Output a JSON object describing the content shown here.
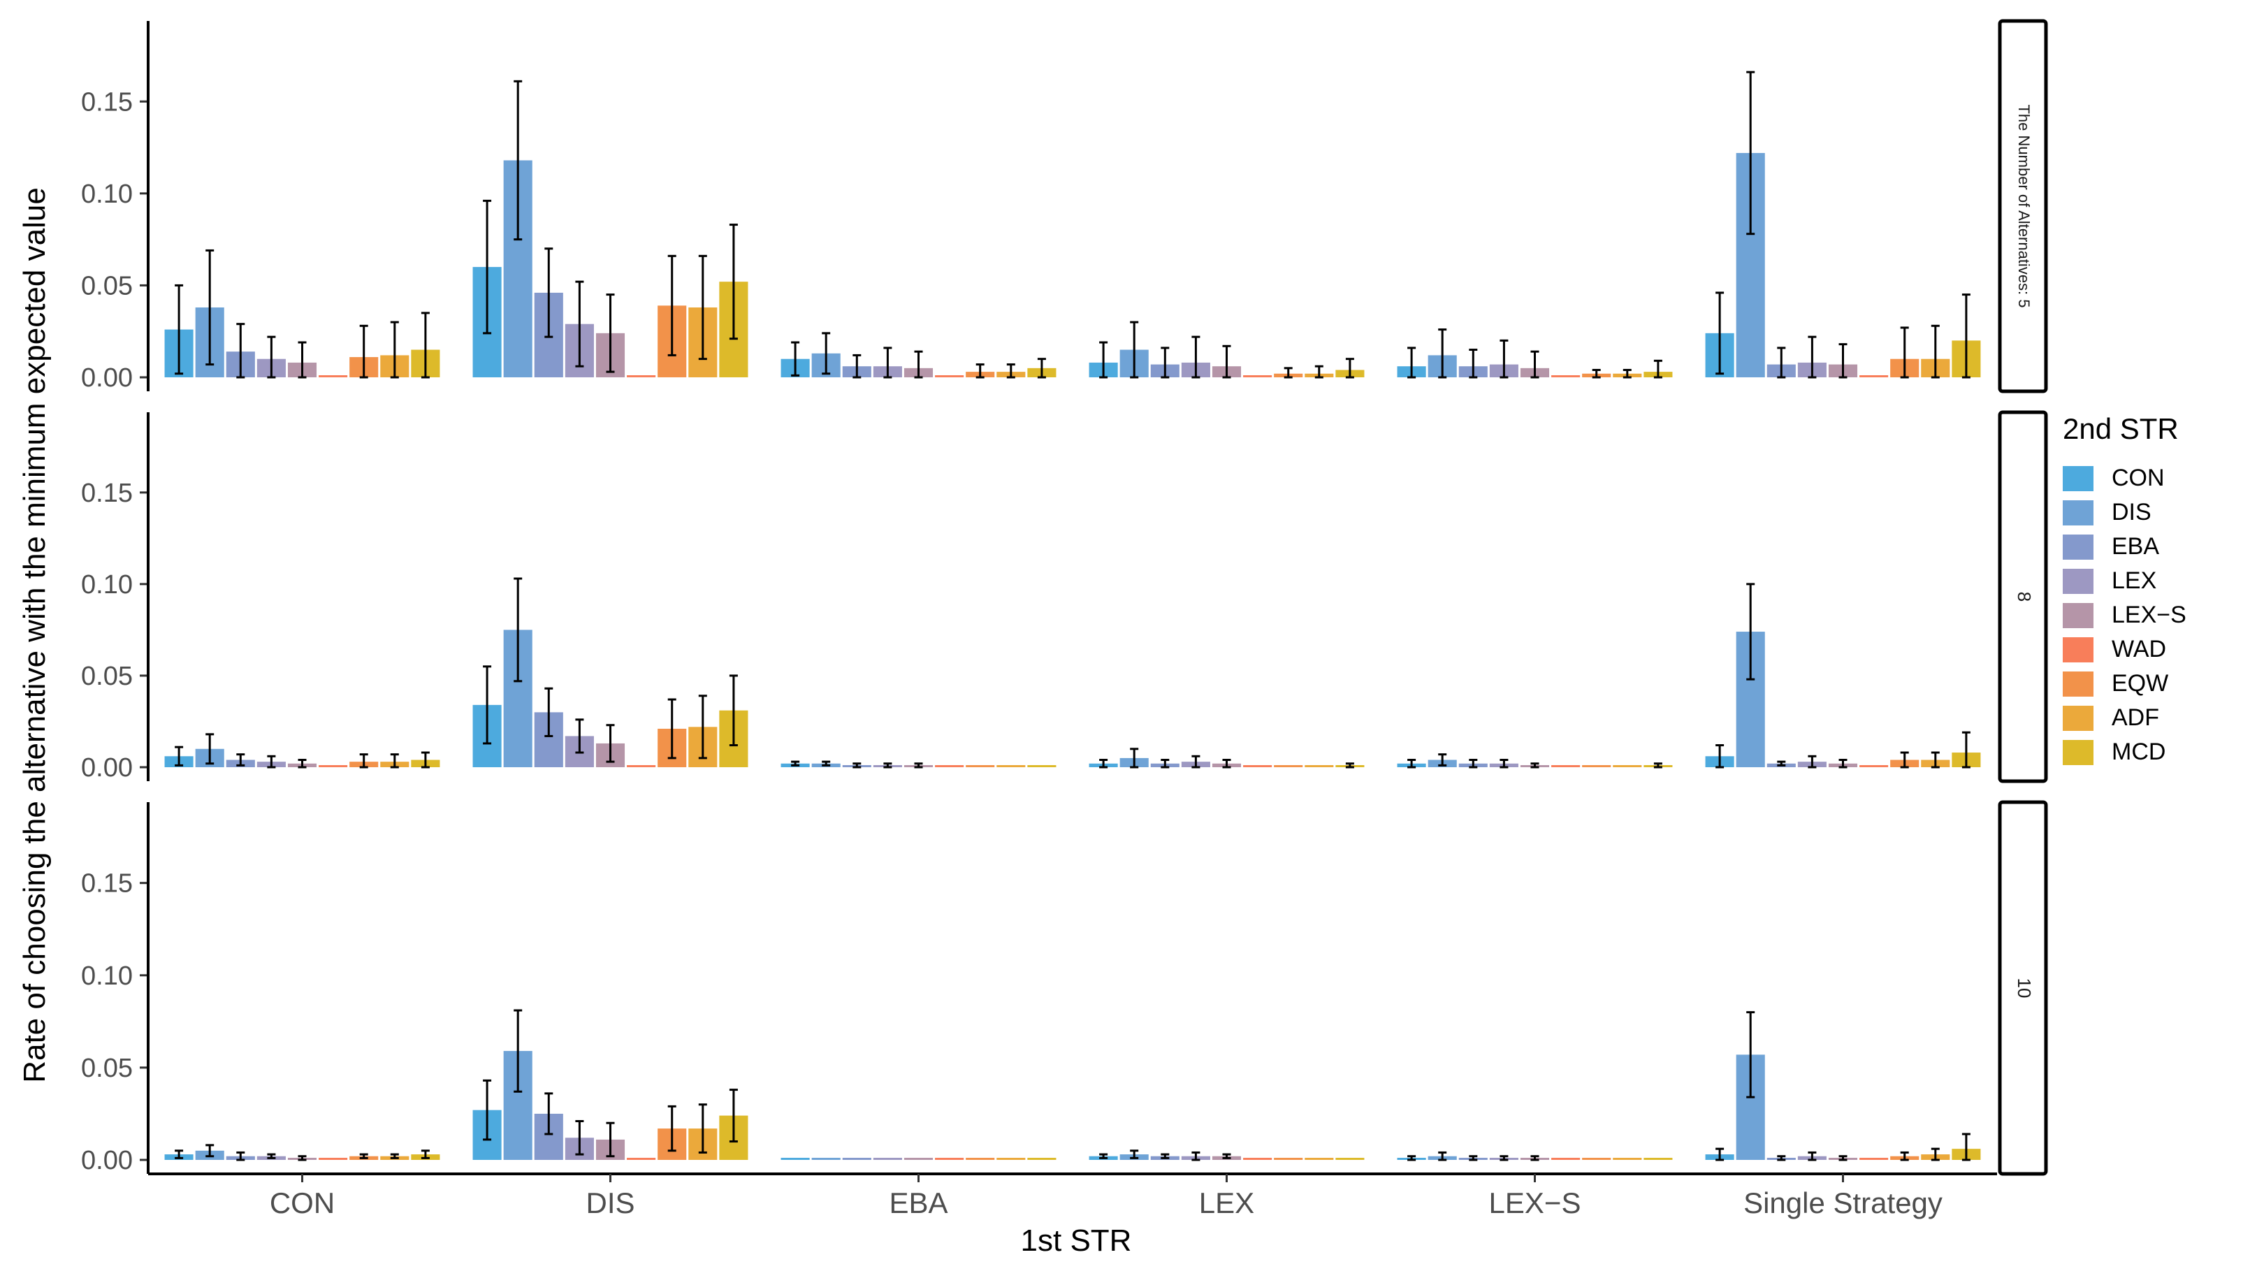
{
  "chart_data": {
    "type": "bar",
    "title": "",
    "xlabel": "1st STR",
    "ylabel": "Rate of choosing the alternative with the minimum expected value",
    "ylim": [
      0,
      0.2
    ],
    "yticks": [
      0.0,
      0.05,
      0.1,
      0.15
    ],
    "ytick_labels": [
      "0.00",
      "0.05",
      "0.10",
      "0.15"
    ],
    "grid": false,
    "legend_title": "2nd STR",
    "legend_position": "right",
    "facet_labels": [
      "The Number of Alternatives: 5",
      "8",
      "10"
    ],
    "categories": [
      "CON",
      "DIS",
      "EBA",
      "LEX",
      "LEX−S",
      "Single Strategy"
    ],
    "series_names": [
      "CON",
      "DIS",
      "EBA",
      "LEX",
      "LEX−S",
      "WAD",
      "EQW",
      "ADF",
      "MCD"
    ],
    "series_colors": [
      "#4DAADE",
      "#6FA3D6",
      "#8499CC",
      "#9D98C2",
      "#B595A8",
      "#F87E5A",
      "#F2924A",
      "#EBA93B",
      "#DDBA2A"
    ],
    "panels": [
      {
        "label": "The Number of Alternatives: 5",
        "values": [
          [
            0.026,
            0.038,
            0.014,
            0.01,
            0.008,
            0.0,
            0.011,
            0.012,
            0.015
          ],
          [
            0.06,
            0.118,
            0.046,
            0.029,
            0.024,
            0.0,
            0.039,
            0.038,
            0.052
          ],
          [
            0.01,
            0.013,
            0.006,
            0.006,
            0.005,
            0.0,
            0.003,
            0.003,
            0.005
          ],
          [
            0.008,
            0.015,
            0.007,
            0.008,
            0.006,
            0.0,
            0.002,
            0.002,
            0.004
          ],
          [
            0.006,
            0.012,
            0.006,
            0.007,
            0.005,
            0.0,
            0.002,
            0.002,
            0.003
          ],
          [
            0.024,
            0.122,
            0.007,
            0.008,
            0.007,
            0.0,
            0.01,
            0.01,
            0.02
          ]
        ],
        "errors": [
          [
            0.024,
            0.031,
            0.015,
            0.012,
            0.011,
            0.0,
            0.017,
            0.018,
            0.02
          ],
          [
            0.036,
            0.043,
            0.024,
            0.023,
            0.021,
            0.0,
            0.027,
            0.028,
            0.031
          ],
          [
            0.009,
            0.011,
            0.006,
            0.01,
            0.009,
            0.0,
            0.004,
            0.004,
            0.005
          ],
          [
            0.011,
            0.015,
            0.009,
            0.014,
            0.011,
            0.0,
            0.003,
            0.004,
            0.006
          ],
          [
            0.01,
            0.014,
            0.009,
            0.013,
            0.009,
            0.0,
            0.002,
            0.002,
            0.006
          ],
          [
            0.022,
            0.044,
            0.009,
            0.014,
            0.011,
            0.0,
            0.017,
            0.018,
            0.025
          ]
        ]
      },
      {
        "label": "8",
        "values": [
          [
            0.006,
            0.01,
            0.004,
            0.003,
            0.002,
            0.0,
            0.003,
            0.003,
            0.004
          ],
          [
            0.034,
            0.075,
            0.03,
            0.017,
            0.013,
            0.0,
            0.021,
            0.022,
            0.031
          ],
          [
            0.002,
            0.002,
            0.001,
            0.001,
            0.001,
            0.0,
            0.0,
            0.0,
            0.001
          ],
          [
            0.002,
            0.005,
            0.002,
            0.003,
            0.002,
            0.0,
            0.0,
            0.0,
            0.001
          ],
          [
            0.002,
            0.004,
            0.002,
            0.002,
            0.001,
            0.0,
            0.0,
            0.0,
            0.001
          ],
          [
            0.006,
            0.074,
            0.002,
            0.003,
            0.002,
            0.0,
            0.004,
            0.004,
            0.008
          ]
        ],
        "errors": [
          [
            0.005,
            0.008,
            0.003,
            0.003,
            0.002,
            0.0,
            0.004,
            0.004,
            0.004
          ],
          [
            0.021,
            0.028,
            0.013,
            0.009,
            0.01,
            0.0,
            0.016,
            0.017,
            0.019
          ],
          [
            0.001,
            0.001,
            0.001,
            0.001,
            0.001,
            0.0,
            0.0,
            0.0,
            0.0
          ],
          [
            0.002,
            0.005,
            0.002,
            0.003,
            0.002,
            0.0,
            0.0,
            0.0,
            0.001
          ],
          [
            0.002,
            0.003,
            0.002,
            0.002,
            0.001,
            0.0,
            0.0,
            0.0,
            0.001
          ],
          [
            0.006,
            0.026,
            0.001,
            0.003,
            0.002,
            0.0,
            0.004,
            0.004,
            0.011
          ]
        ]
      },
      {
        "label": "10",
        "values": [
          [
            0.003,
            0.005,
            0.002,
            0.002,
            0.001,
            0.0,
            0.002,
            0.002,
            0.003
          ],
          [
            0.027,
            0.059,
            0.025,
            0.012,
            0.011,
            0.0,
            0.017,
            0.017,
            0.024
          ],
          [
            0.001,
            0.001,
            0.001,
            0.0,
            0.0,
            0.0,
            0.0,
            0.0,
            0.0
          ],
          [
            0.002,
            0.003,
            0.002,
            0.002,
            0.002,
            0.0,
            0.0,
            0.0,
            0.0
          ],
          [
            0.001,
            0.002,
            0.001,
            0.001,
            0.001,
            0.0,
            0.0,
            0.0,
            0.0
          ],
          [
            0.003,
            0.057,
            0.001,
            0.002,
            0.001,
            0.0,
            0.002,
            0.003,
            0.006
          ]
        ],
        "errors": [
          [
            0.002,
            0.003,
            0.002,
            0.001,
            0.001,
            0.0,
            0.001,
            0.001,
            0.002
          ],
          [
            0.016,
            0.022,
            0.011,
            0.009,
            0.009,
            0.0,
            0.012,
            0.013,
            0.014
          ],
          [
            0.0,
            0.0,
            0.0,
            0.0,
            0.0,
            0.0,
            0.0,
            0.0,
            0.0
          ],
          [
            0.001,
            0.002,
            0.001,
            0.002,
            0.001,
            0.0,
            0.0,
            0.0,
            0.0
          ],
          [
            0.001,
            0.002,
            0.001,
            0.001,
            0.001,
            0.0,
            0.0,
            0.0,
            0.0
          ],
          [
            0.003,
            0.023,
            0.001,
            0.002,
            0.001,
            0.0,
            0.002,
            0.003,
            0.008
          ]
        ]
      }
    ]
  }
}
